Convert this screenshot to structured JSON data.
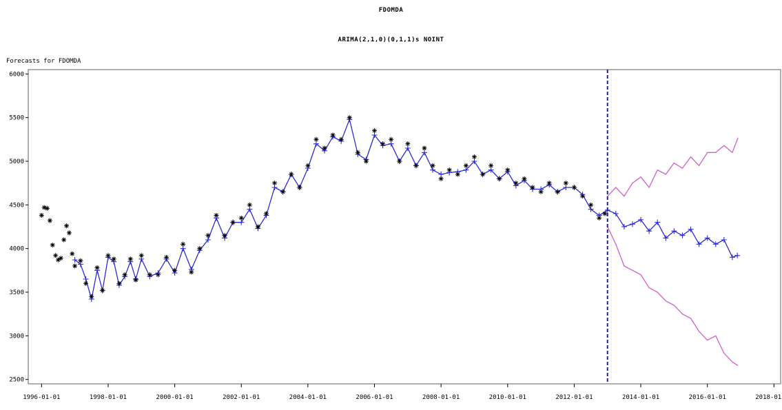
{
  "header": {
    "title": "FDOMDA",
    "subtitle": "ARIMA(2,1,0)(0,1,1)s NOINT",
    "panel_label": "Forecasts for FDOMDA"
  },
  "colors": {
    "actual_marker": "#000000",
    "fitted": "#2a2ad8",
    "bounds": "#d060c8",
    "forecast_start_line": "#1a1aa8"
  },
  "chart_data": {
    "type": "line",
    "title": "FDOMDA",
    "subtitle": "ARIMA(2,1,0)(0,1,1)s NOINT",
    "xlabel": "",
    "ylabel": "",
    "xlim": [
      1995.6,
      2018.2
    ],
    "ylim": [
      2450,
      6050
    ],
    "x_ticks": [
      "1996-01-01",
      "1998-01-01",
      "2000-01-01",
      "2002-01-01",
      "2004-01-01",
      "2006-01-01",
      "2008-01-01",
      "2010-01-01",
      "2012-01-01",
      "2014-01-01",
      "2016-01-01",
      "2018-01-01"
    ],
    "x_tick_values": [
      1996,
      1998,
      2000,
      2002,
      2004,
      2006,
      2008,
      2010,
      2012,
      2014,
      2016,
      2018
    ],
    "y_ticks": [
      2500,
      3000,
      3500,
      4000,
      4500,
      5000,
      5500,
      6000
    ],
    "forecast_start": 2013.0,
    "series": [
      {
        "role": "actual",
        "marker": "star",
        "x": [
          1996.0,
          1996.08,
          1996.17,
          1996.25,
          1996.33,
          1996.42,
          1996.5,
          1996.58,
          1996.67,
          1996.75,
          1996.83,
          1996.92,
          1997.0,
          1997.17,
          1997.33,
          1997.5,
          1997.67,
          1997.83,
          1998.0,
          1998.17,
          1998.33,
          1998.5,
          1998.67,
          1998.83,
          1999.0,
          1999.25,
          1999.5,
          1999.75,
          2000.0,
          2000.25,
          2000.5,
          2000.75,
          2001.0,
          2001.25,
          2001.5,
          2001.75,
          2002.0,
          2002.25,
          2002.5,
          2002.75,
          2003.0,
          2003.25,
          2003.5,
          2003.75,
          2004.0,
          2004.25,
          2004.5,
          2004.75,
          2005.0,
          2005.25,
          2005.5,
          2005.75,
          2006.0,
          2006.25,
          2006.5,
          2006.75,
          2007.0,
          2007.25,
          2007.5,
          2007.75,
          2008.0,
          2008.25,
          2008.5,
          2008.75,
          2009.0,
          2009.25,
          2009.5,
          2009.75,
          2010.0,
          2010.25,
          2010.5,
          2010.75,
          2011.0,
          2011.25,
          2011.5,
          2011.75,
          2012.0,
          2012.25,
          2012.5,
          2012.75,
          2012.92
        ],
        "y": [
          4380,
          4470,
          4460,
          4320,
          4040,
          3920,
          3870,
          3890,
          4100,
          4260,
          4180,
          3940,
          3800,
          3860,
          3600,
          3450,
          3780,
          3520,
          3920,
          3880,
          3600,
          3700,
          3880,
          3640,
          3920,
          3700,
          3700,
          3900,
          3750,
          4050,
          3730,
          4000,
          4150,
          4380,
          4150,
          4300,
          4350,
          4500,
          4250,
          4400,
          4750,
          4650,
          4850,
          4700,
          4950,
          5250,
          5150,
          5300,
          5250,
          5500,
          5100,
          5000,
          5350,
          5200,
          5250,
          5000,
          5200,
          4950,
          5150,
          4950,
          4800,
          4900,
          4850,
          4950,
          5050,
          4850,
          4950,
          4800,
          4900,
          4750,
          4800,
          4700,
          4650,
          4750,
          4650,
          4750,
          4700,
          4600,
          4500,
          4350,
          4400
        ]
      },
      {
        "role": "fitted",
        "marker": "plus",
        "x": [
          1997.0,
          1997.17,
          1997.33,
          1997.5,
          1997.67,
          1997.83,
          1998.0,
          1998.17,
          1998.33,
          1998.5,
          1998.67,
          1998.83,
          1999.0,
          1999.25,
          1999.5,
          1999.75,
          2000.0,
          2000.25,
          2000.5,
          2000.75,
          2001.0,
          2001.25,
          2001.5,
          2001.75,
          2002.0,
          2002.25,
          2002.5,
          2002.75,
          2003.0,
          2003.25,
          2003.5,
          2003.75,
          2004.0,
          2004.25,
          2004.5,
          2004.75,
          2005.0,
          2005.25,
          2005.5,
          2005.75,
          2006.0,
          2006.25,
          2006.5,
          2006.75,
          2007.0,
          2007.25,
          2007.5,
          2007.75,
          2008.0,
          2008.25,
          2008.5,
          2008.75,
          2009.0,
          2009.25,
          2009.5,
          2009.75,
          2010.0,
          2010.25,
          2010.5,
          2010.75,
          2011.0,
          2011.25,
          2011.5,
          2011.75,
          2012.0,
          2012.25,
          2012.5,
          2012.75,
          2013.0,
          2013.25,
          2013.5,
          2013.75,
          2014.0,
          2014.25,
          2014.5,
          2014.75,
          2015.0,
          2015.25,
          2015.5,
          2015.75,
          2016.0,
          2016.25,
          2016.5,
          2016.75,
          2016.9
        ],
        "y": [
          3870,
          3820,
          3650,
          3420,
          3750,
          3520,
          3900,
          3850,
          3580,
          3680,
          3850,
          3650,
          3880,
          3680,
          3720,
          3880,
          3720,
          4000,
          3760,
          3980,
          4100,
          4350,
          4120,
          4300,
          4300,
          4450,
          4230,
          4380,
          4700,
          4650,
          4850,
          4700,
          4920,
          5200,
          5120,
          5280,
          5230,
          5480,
          5080,
          5020,
          5300,
          5180,
          5200,
          5000,
          5150,
          4950,
          5100,
          4900,
          4850,
          4870,
          4880,
          4900,
          5000,
          4850,
          4900,
          4800,
          4880,
          4720,
          4780,
          4680,
          4680,
          4730,
          4650,
          4700,
          4700,
          4620,
          4450,
          4380,
          4440,
          4400,
          4250,
          4280,
          4330,
          4200,
          4300,
          4120,
          4200,
          4150,
          4220,
          4050,
          4120,
          4050,
          4100,
          3900,
          3920
        ]
      },
      {
        "role": "upper-bound",
        "marker": "none",
        "x": [
          2013.0,
          2013.25,
          2013.5,
          2013.75,
          2014.0,
          2014.25,
          2014.5,
          2014.75,
          2015.0,
          2015.25,
          2015.5,
          2015.75,
          2016.0,
          2016.25,
          2016.5,
          2016.75,
          2016.92
        ],
        "y": [
          4600,
          4700,
          4600,
          4750,
          4820,
          4700,
          4900,
          4850,
          4980,
          4920,
          5050,
          4950,
          5100,
          5100,
          5180,
          5100,
          5270
        ]
      },
      {
        "role": "lower-bound",
        "marker": "none",
        "x": [
          2013.0,
          2013.25,
          2013.5,
          2013.75,
          2014.0,
          2014.25,
          2014.5,
          2014.75,
          2015.0,
          2015.25,
          2015.5,
          2015.75,
          2016.0,
          2016.25,
          2016.5,
          2016.75,
          2016.92
        ],
        "y": [
          4250,
          4050,
          3800,
          3750,
          3700,
          3550,
          3500,
          3400,
          3350,
          3250,
          3200,
          3050,
          2950,
          3000,
          2800,
          2700,
          2660
        ]
      }
    ]
  }
}
